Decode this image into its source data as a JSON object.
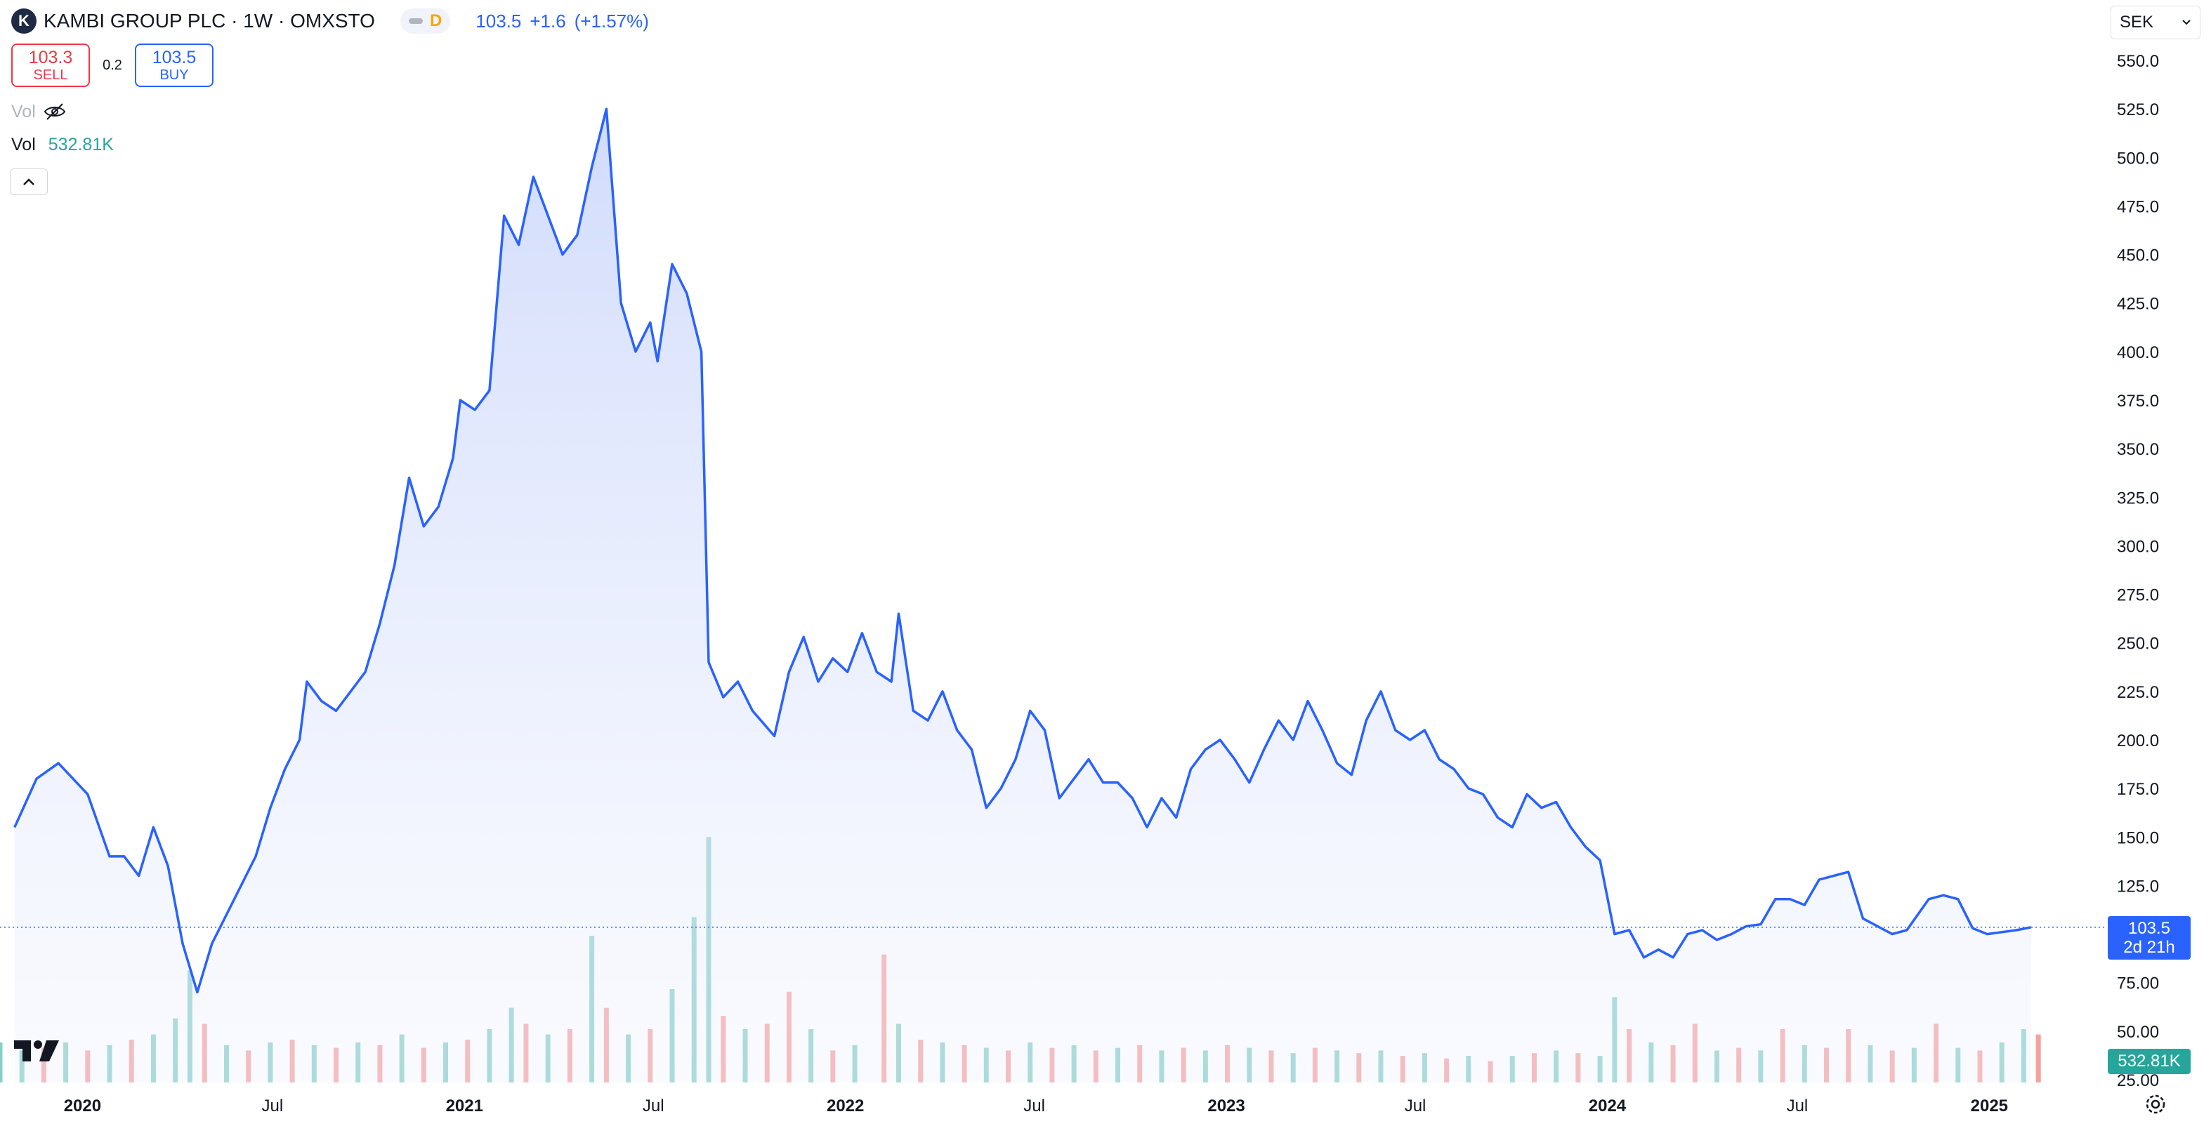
{
  "header": {
    "logo_letter": "K",
    "symbol_title": "KAMBI GROUP PLC · 1W · OMXSTO",
    "interval_badge": "D",
    "last_price": "103.5",
    "change": "+1.6",
    "change_pct": "(+1.57%)"
  },
  "trade": {
    "sell_price": "103.3",
    "sell_label": "SELL",
    "spread": "0.2",
    "buy_price": "103.5",
    "buy_label": "BUY"
  },
  "volume_legend": {
    "hidden_label": "Vol",
    "label": "Vol",
    "value": "532.81K"
  },
  "currency": "SEK",
  "price_label": {
    "value": "103.5",
    "countdown": "2d 21h"
  },
  "volume_label": "532.81K",
  "colors": {
    "line": "#2962ff",
    "area_top": "#d6defa",
    "volume_up": "#26a69a",
    "volume_down": "#ef5350",
    "sell": "#f23645",
    "buy": "#2962ff"
  },
  "chart_data": {
    "type": "area",
    "interval": "1W",
    "y_axis_ticks": [
      "550.0",
      "525.0",
      "500.0",
      "475.0",
      "450.0",
      "425.0",
      "400.0",
      "375.0",
      "350.0",
      "325.0",
      "300.0",
      "275.0",
      "250.0",
      "225.0",
      "200.0",
      "175.0",
      "150.0",
      "125.0",
      "100.0",
      "75.00",
      "50.00",
      "25.00"
    ],
    "x_axis_ticks": [
      {
        "label": "2020",
        "date": "2020-01-01",
        "bold": true
      },
      {
        "label": "Jul",
        "date": "2020-07-01",
        "bold": false
      },
      {
        "label": "2021",
        "date": "2021-01-01",
        "bold": true
      },
      {
        "label": "Jul",
        "date": "2021-07-01",
        "bold": false
      },
      {
        "label": "2022",
        "date": "2022-01-01",
        "bold": true
      },
      {
        "label": "Jul",
        "date": "2022-07-01",
        "bold": false
      },
      {
        "label": "2023",
        "date": "2023-01-01",
        "bold": true
      },
      {
        "label": "Jul",
        "date": "2023-07-01",
        "bold": false
      },
      {
        "label": "2024",
        "date": "2024-01-01",
        "bold": true
      },
      {
        "label": "Jul",
        "date": "2024-07-01",
        "bold": false
      },
      {
        "label": "2025",
        "date": "2025-01-01",
        "bold": true
      }
    ],
    "ylim": [
      25,
      550
    ],
    "xlim": [
      "2019-10-14",
      "2025-04-07"
    ],
    "last_value": 103.5,
    "series": [
      {
        "points": [
          [
            "2019-10-28",
            155
          ],
          [
            "2019-11-18",
            180
          ],
          [
            "2019-12-09",
            188
          ],
          [
            "2020-01-06",
            172
          ],
          [
            "2020-01-27",
            140
          ],
          [
            "2020-02-10",
            140
          ],
          [
            "2020-02-24",
            130
          ],
          [
            "2020-03-09",
            155
          ],
          [
            "2020-03-23",
            135
          ],
          [
            "2020-04-06",
            95
          ],
          [
            "2020-04-20",
            70
          ],
          [
            "2020-05-04",
            95
          ],
          [
            "2020-05-18",
            110
          ],
          [
            "2020-06-01",
            125
          ],
          [
            "2020-06-15",
            140
          ],
          [
            "2020-06-29",
            165
          ],
          [
            "2020-07-13",
            185
          ],
          [
            "2020-07-27",
            200
          ],
          [
            "2020-08-03",
            230
          ],
          [
            "2020-08-17",
            220
          ],
          [
            "2020-08-31",
            215
          ],
          [
            "2020-09-14",
            225
          ],
          [
            "2020-09-28",
            235
          ],
          [
            "2020-10-12",
            260
          ],
          [
            "2020-10-26",
            290
          ],
          [
            "2020-11-09",
            335
          ],
          [
            "2020-11-23",
            310
          ],
          [
            "2020-12-07",
            320
          ],
          [
            "2020-12-21",
            345
          ],
          [
            "2020-12-28",
            375
          ],
          [
            "2021-01-11",
            370
          ],
          [
            "2021-01-25",
            380
          ],
          [
            "2021-02-08",
            470
          ],
          [
            "2021-02-22",
            455
          ],
          [
            "2021-03-08",
            490
          ],
          [
            "2021-03-22",
            470
          ],
          [
            "2021-04-05",
            450
          ],
          [
            "2021-04-19",
            460
          ],
          [
            "2021-05-03",
            495
          ],
          [
            "2021-05-17",
            525
          ],
          [
            "2021-05-31",
            425
          ],
          [
            "2021-06-14",
            400
          ],
          [
            "2021-06-28",
            415
          ],
          [
            "2021-07-05",
            395
          ],
          [
            "2021-07-19",
            445
          ],
          [
            "2021-08-02",
            430
          ],
          [
            "2021-08-16",
            400
          ],
          [
            "2021-08-23",
            240
          ],
          [
            "2021-09-06",
            222
          ],
          [
            "2021-09-20",
            230
          ],
          [
            "2021-10-04",
            215
          ],
          [
            "2021-10-25",
            202
          ],
          [
            "2021-11-08",
            235
          ],
          [
            "2021-11-22",
            253
          ],
          [
            "2021-12-06",
            230
          ],
          [
            "2021-12-20",
            242
          ],
          [
            "2022-01-03",
            235
          ],
          [
            "2022-01-17",
            255
          ],
          [
            "2022-01-31",
            235
          ],
          [
            "2022-02-14",
            230
          ],
          [
            "2022-02-21",
            265
          ],
          [
            "2022-03-07",
            215
          ],
          [
            "2022-03-21",
            210
          ],
          [
            "2022-04-04",
            225
          ],
          [
            "2022-04-18",
            205
          ],
          [
            "2022-05-02",
            195
          ],
          [
            "2022-05-16",
            165
          ],
          [
            "2022-05-30",
            175
          ],
          [
            "2022-06-13",
            190
          ],
          [
            "2022-06-27",
            215
          ],
          [
            "2022-07-11",
            205
          ],
          [
            "2022-07-25",
            170
          ],
          [
            "2022-08-08",
            180
          ],
          [
            "2022-08-22",
            190
          ],
          [
            "2022-09-05",
            178
          ],
          [
            "2022-09-19",
            178
          ],
          [
            "2022-10-03",
            170
          ],
          [
            "2022-10-17",
            155
          ],
          [
            "2022-10-31",
            170
          ],
          [
            "2022-11-14",
            160
          ],
          [
            "2022-11-28",
            185
          ],
          [
            "2022-12-12",
            195
          ],
          [
            "2022-12-26",
            200
          ],
          [
            "2023-01-09",
            190
          ],
          [
            "2023-01-23",
            178
          ],
          [
            "2023-02-06",
            195
          ],
          [
            "2023-02-20",
            210
          ],
          [
            "2023-03-06",
            200
          ],
          [
            "2023-03-20",
            220
          ],
          [
            "2023-04-03",
            205
          ],
          [
            "2023-04-17",
            188
          ],
          [
            "2023-05-01",
            182
          ],
          [
            "2023-05-15",
            210
          ],
          [
            "2023-05-29",
            225
          ],
          [
            "2023-06-12",
            205
          ],
          [
            "2023-06-26",
            200
          ],
          [
            "2023-07-10",
            205
          ],
          [
            "2023-07-24",
            190
          ],
          [
            "2023-08-07",
            185
          ],
          [
            "2023-08-21",
            175
          ],
          [
            "2023-09-04",
            172
          ],
          [
            "2023-09-18",
            160
          ],
          [
            "2023-10-02",
            155
          ],
          [
            "2023-10-16",
            172
          ],
          [
            "2023-10-30",
            165
          ],
          [
            "2023-11-13",
            168
          ],
          [
            "2023-11-27",
            155
          ],
          [
            "2023-12-11",
            145
          ],
          [
            "2023-12-25",
            138
          ],
          [
            "2024-01-08",
            100
          ],
          [
            "2024-01-22",
            102
          ],
          [
            "2024-02-05",
            88
          ],
          [
            "2024-02-19",
            92
          ],
          [
            "2024-03-04",
            88
          ],
          [
            "2024-03-18",
            100
          ],
          [
            "2024-04-01",
            102
          ],
          [
            "2024-04-15",
            97
          ],
          [
            "2024-04-29",
            100
          ],
          [
            "2024-05-13",
            104
          ],
          [
            "2024-05-27",
            105
          ],
          [
            "2024-06-10",
            118
          ],
          [
            "2024-06-24",
            118
          ],
          [
            "2024-07-08",
            115
          ],
          [
            "2024-07-22",
            128
          ],
          [
            "2024-08-05",
            130
          ],
          [
            "2024-08-19",
            132
          ],
          [
            "2024-09-02",
            108
          ],
          [
            "2024-09-16",
            104
          ],
          [
            "2024-09-30",
            100
          ],
          [
            "2024-10-14",
            102
          ],
          [
            "2024-11-04",
            118
          ],
          [
            "2024-11-18",
            120
          ],
          [
            "2024-12-02",
            118
          ],
          [
            "2024-12-16",
            103
          ],
          [
            "2024-12-30",
            100
          ],
          [
            "2025-01-13",
            101
          ],
          [
            "2025-01-27",
            102
          ],
          [
            "2025-02-10",
            103.5
          ]
        ]
      }
    ],
    "volume": {
      "max_label": "",
      "bars": [
        [
          "2019-10-14",
          0.15,
          1
        ],
        [
          "2019-11-04",
          0.12,
          1
        ],
        [
          "2019-11-25",
          0.13,
          0
        ],
        [
          "2019-12-16",
          0.15,
          1
        ],
        [
          "2020-01-06",
          0.12,
          0
        ],
        [
          "2020-01-27",
          0.14,
          1
        ],
        [
          "2020-02-17",
          0.16,
          0
        ],
        [
          "2020-03-09",
          0.18,
          1
        ],
        [
          "2020-03-30",
          0.24,
          1
        ],
        [
          "2020-04-13",
          0.42,
          1
        ],
        [
          "2020-04-27",
          0.22,
          0
        ],
        [
          "2020-05-18",
          0.14,
          1
        ],
        [
          "2020-06-08",
          0.12,
          0
        ],
        [
          "2020-06-29",
          0.15,
          1
        ],
        [
          "2020-07-20",
          0.16,
          0
        ],
        [
          "2020-08-10",
          0.14,
          1
        ],
        [
          "2020-08-31",
          0.13,
          0
        ],
        [
          "2020-09-21",
          0.15,
          1
        ],
        [
          "2020-10-12",
          0.14,
          0
        ],
        [
          "2020-11-02",
          0.18,
          1
        ],
        [
          "2020-11-23",
          0.13,
          0
        ],
        [
          "2020-12-14",
          0.15,
          1
        ],
        [
          "2021-01-04",
          0.16,
          0
        ],
        [
          "2021-01-25",
          0.2,
          1
        ],
        [
          "2021-02-15",
          0.28,
          1
        ],
        [
          "2021-03-01",
          0.22,
          0
        ],
        [
          "2021-03-22",
          0.18,
          1
        ],
        [
          "2021-04-12",
          0.2,
          0
        ],
        [
          "2021-05-03",
          0.55,
          1
        ],
        [
          "2021-05-17",
          0.28,
          0
        ],
        [
          "2021-06-07",
          0.18,
          1
        ],
        [
          "2021-06-28",
          0.2,
          0
        ],
        [
          "2021-07-19",
          0.35,
          1
        ],
        [
          "2021-08-09",
          0.62,
          1
        ],
        [
          "2021-08-23",
          0.92,
          1
        ],
        [
          "2021-09-06",
          0.25,
          0
        ],
        [
          "2021-09-27",
          0.2,
          1
        ],
        [
          "2021-10-18",
          0.22,
          0
        ],
        [
          "2021-11-08",
          0.34,
          0
        ],
        [
          "2021-11-29",
          0.2,
          1
        ],
        [
          "2021-12-20",
          0.12,
          0
        ],
        [
          "2022-01-10",
          0.14,
          1
        ],
        [
          "2022-02-07",
          0.48,
          0
        ],
        [
          "2022-02-21",
          0.22,
          1
        ],
        [
          "2022-03-14",
          0.16,
          0
        ],
        [
          "2022-04-04",
          0.15,
          1
        ],
        [
          "2022-04-25",
          0.14,
          0
        ],
        [
          "2022-05-16",
          0.13,
          1
        ],
        [
          "2022-06-06",
          0.12,
          0
        ],
        [
          "2022-06-27",
          0.15,
          1
        ],
        [
          "2022-07-18",
          0.13,
          0
        ],
        [
          "2022-08-08",
          0.14,
          1
        ],
        [
          "2022-08-29",
          0.12,
          0
        ],
        [
          "2022-09-19",
          0.13,
          1
        ],
        [
          "2022-10-10",
          0.14,
          0
        ],
        [
          "2022-10-31",
          0.12,
          1
        ],
        [
          "2022-11-21",
          0.13,
          0
        ],
        [
          "2022-12-12",
          0.12,
          1
        ],
        [
          "2023-01-02",
          0.14,
          0
        ],
        [
          "2023-01-23",
          0.13,
          1
        ],
        [
          "2023-02-13",
          0.12,
          0
        ],
        [
          "2023-03-06",
          0.11,
          1
        ],
        [
          "2023-03-27",
          0.13,
          0
        ],
        [
          "2023-04-17",
          0.12,
          1
        ],
        [
          "2023-05-08",
          0.11,
          0
        ],
        [
          "2023-05-29",
          0.12,
          1
        ],
        [
          "2023-06-19",
          0.1,
          0
        ],
        [
          "2023-07-10",
          0.11,
          1
        ],
        [
          "2023-07-31",
          0.09,
          0
        ],
        [
          "2023-08-21",
          0.1,
          1
        ],
        [
          "2023-09-11",
          0.08,
          0
        ],
        [
          "2023-10-02",
          0.1,
          1
        ],
        [
          "2023-10-23",
          0.11,
          0
        ],
        [
          "2023-11-13",
          0.12,
          1
        ],
        [
          "2023-12-04",
          0.11,
          0
        ],
        [
          "2023-12-25",
          0.1,
          1
        ],
        [
          "2024-01-08",
          0.32,
          1
        ],
        [
          "2024-01-22",
          0.2,
          0
        ],
        [
          "2024-02-12",
          0.15,
          1
        ],
        [
          "2024-03-04",
          0.14,
          0
        ],
        [
          "2024-03-25",
          0.22,
          0
        ],
        [
          "2024-04-15",
          0.12,
          1
        ],
        [
          "2024-05-06",
          0.13,
          0
        ],
        [
          "2024-05-27",
          0.12,
          1
        ],
        [
          "2024-06-17",
          0.2,
          0
        ],
        [
          "2024-07-08",
          0.14,
          1
        ],
        [
          "2024-07-29",
          0.13,
          0
        ],
        [
          "2024-08-19",
          0.2,
          0
        ],
        [
          "2024-09-09",
          0.14,
          1
        ],
        [
          "2024-09-30",
          0.12,
          0
        ],
        [
          "2024-10-21",
          0.13,
          1
        ],
        [
          "2024-11-11",
          0.22,
          0
        ],
        [
          "2024-12-02",
          0.13,
          1
        ],
        [
          "2024-12-23",
          0.12,
          0
        ],
        [
          "2025-01-13",
          0.15,
          1
        ],
        [
          "2025-02-03",
          0.2,
          1
        ],
        [
          "2025-02-17",
          0.18,
          0
        ]
      ]
    }
  }
}
